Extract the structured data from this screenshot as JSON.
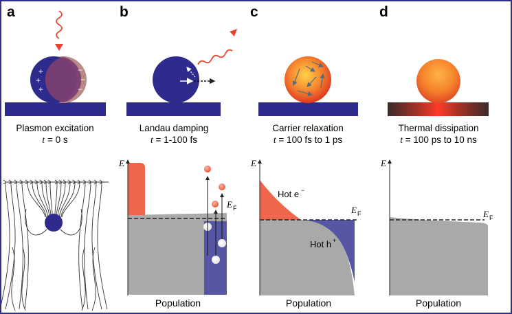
{
  "panels": [
    {
      "letter": "a",
      "title": "Plasmon excitation",
      "time_var": "t",
      "time_value": "= 0 s"
    },
    {
      "letter": "b",
      "title": "Landau damping",
      "time_var": "t",
      "time_value": "= 1-100 fs"
    },
    {
      "letter": "c",
      "title": "Carrier relaxation",
      "time_var": "t",
      "time_value": "= 100 fs to 1 ps"
    },
    {
      "letter": "d",
      "title": "Thermal dissipation",
      "time_var": "t",
      "time_value": "= 100 ps to 10 ns"
    }
  ],
  "axes": {
    "energy": "E",
    "fermi": "E",
    "fermi_sub": "F",
    "population": "Population"
  },
  "labels": {
    "hot_electron": "Hot e",
    "hot_electron_sup": "−",
    "hot_hole": "Hot h",
    "hot_hole_sup": "+"
  },
  "charges": {
    "plus": "+",
    "minus": "−"
  },
  "colors": {
    "particle_blue": "#2e2b8c",
    "hot_orange": "#f0664a",
    "hole_blue": "#5656a4",
    "population_gray": "#a9a9a9",
    "light_red": "#e8442e",
    "frame": "#2f2f8f"
  }
}
